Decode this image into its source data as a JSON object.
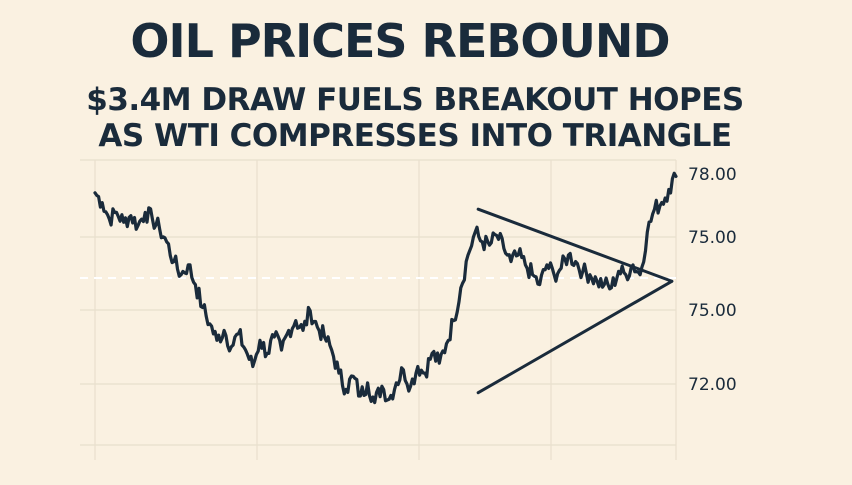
{
  "page": {
    "background": "#faf1e1",
    "ink": "#1a2b3b",
    "grid_color": "#e8dfcd"
  },
  "headline": "OIL PRICES REBOUND",
  "subheadline_line1": "$3.4M DRAW FUELS BREAKOUT HOPES",
  "subheadline_line2": "AS WTI COMPRESSES INTO TRIANGLE",
  "chart_data": {
    "type": "line",
    "title": "OIL PRICES REBOUND",
    "series": [
      {
        "values": [
          77.5,
          77.2,
          76.7,
          76.9,
          76.6,
          76.8,
          76.5,
          76.9,
          76.7,
          76.4,
          76.0,
          75.4,
          75.0,
          75.3,
          74.7,
          74.0,
          73.5,
          73.0,
          73.3,
          72.8,
          73.2,
          72.7,
          72.2,
          73.0,
          72.6,
          73.1,
          72.7,
          73.3,
          73.6,
          73.3,
          73.9,
          73.4,
          73.1,
          72.7,
          72.0,
          71.5,
          71.9,
          71.3,
          71.7,
          71.1,
          71.6,
          71.2,
          71.7,
          72.1,
          71.6,
          72.2,
          72.0,
          72.6,
          72.3,
          72.9,
          73.6,
          74.6,
          75.6,
          76.3,
          76.0,
          75.9,
          76.2,
          75.8,
          75.4,
          75.6,
          75.3,
          75.0,
          74.7,
          75.3,
          75.0,
          75.2,
          75.6,
          75.4,
          75.1,
          75.0,
          74.8,
          74.7,
          74.6,
          75.1,
          75.0,
          75.3,
          75.0,
          76.3,
          77.0,
          77.2,
          77.6,
          78.0
        ],
        "color": "#1a2b3b"
      }
    ],
    "y_ticks": [
      "78.00",
      "75.00",
      "75.00",
      "72.00"
    ],
    "y_tick_values": [
      78,
      75,
      75,
      72
    ],
    "ylim": [
      69.5,
      78.5
    ],
    "reference_line": {
      "value": 74.9,
      "style": "dashed"
    },
    "triangle_pattern": {
      "upper_trendline": [
        [
          53,
          77.0
        ],
        [
          80,
          74.8
        ]
      ],
      "lower_trendline": [
        [
          53,
          71.4
        ],
        [
          80,
          74.8
        ]
      ]
    },
    "grid": true,
    "legend": "none"
  }
}
